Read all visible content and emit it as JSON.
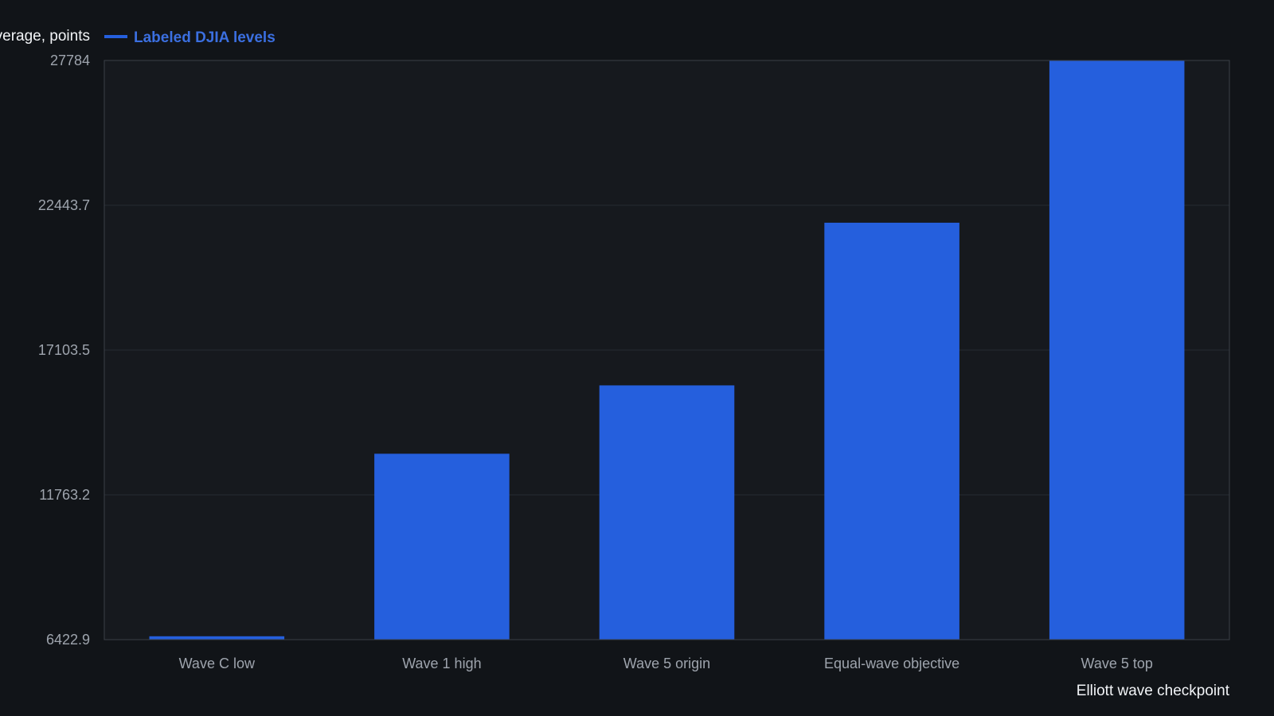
{
  "chart_data": {
    "type": "bar",
    "categories": [
      "Wave C low",
      "Wave 1 high",
      "Wave 5 origin",
      "Equal-wave objective",
      "Wave 5 top"
    ],
    "series": [
      {
        "name": "Labeled DJIA levels",
        "values": [
          6547,
          13279,
          15800,
          21800,
          27784
        ]
      }
    ],
    "xlabel": "Elliott wave checkpoint",
    "ylabel": "Dow Jones Industrial Average, points",
    "ylim": [
      6422.9,
      27784
    ],
    "yticks": [
      "6422.9",
      "11763.2",
      "17103.5",
      "22443.7",
      "27784"
    ],
    "grid": "horizontal",
    "legend": "top-left",
    "colors": {
      "background": "#111418",
      "plot_background": "#16191e",
      "bar": "#255fdd",
      "legend_text": "#3b6fe0",
      "grid": "#262b33",
      "axis": "#3a3f47"
    }
  }
}
